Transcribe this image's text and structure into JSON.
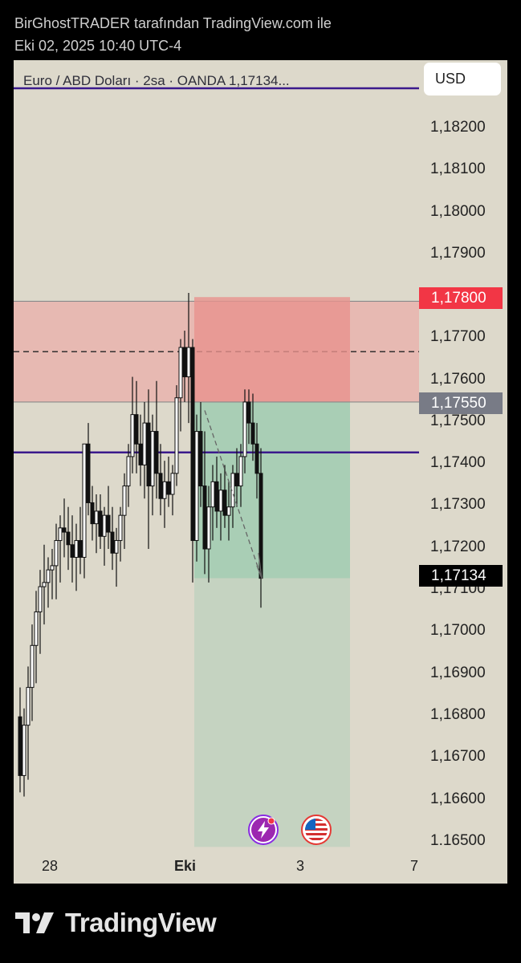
{
  "header": {
    "line1": "BirGhostTRADER tarafından TradingView.com ile",
    "line2": "Eki 02, 2025 10:40 UTC-4"
  },
  "chart": {
    "legend": "Euro / ABD Doları · 2sa · OANDA  1,17134...",
    "currency_button": "USD",
    "price_labels": [
      "1,18200",
      "1,18100",
      "1,18000",
      "1,17900",
      "1,17700",
      "1,17600",
      "1,17500",
      "1,17400",
      "1,17300",
      "1,17200",
      "1,17100",
      "1,17000",
      "1,16900",
      "1,16800",
      "1,16700",
      "1,16600",
      "1.16500"
    ],
    "badge_stop": "1,17800",
    "badge_entry": "1,17550",
    "badge_last": "1,17134",
    "time_labels": [
      "28",
      "Eki",
      "3",
      "7"
    ],
    "colors": {
      "background": "#ddd9cb",
      "zone_red": "#e9aaa4",
      "zone_green": "#a9ceb5",
      "level_line": "#3b1a8c",
      "badge_stop": "#f23645",
      "badge_entry": "#787b86",
      "badge_last": "#000000"
    },
    "icons": [
      "lightning-event-icon",
      "us-flag-event-icon"
    ]
  },
  "brand": {
    "name": "TradingView"
  }
}
